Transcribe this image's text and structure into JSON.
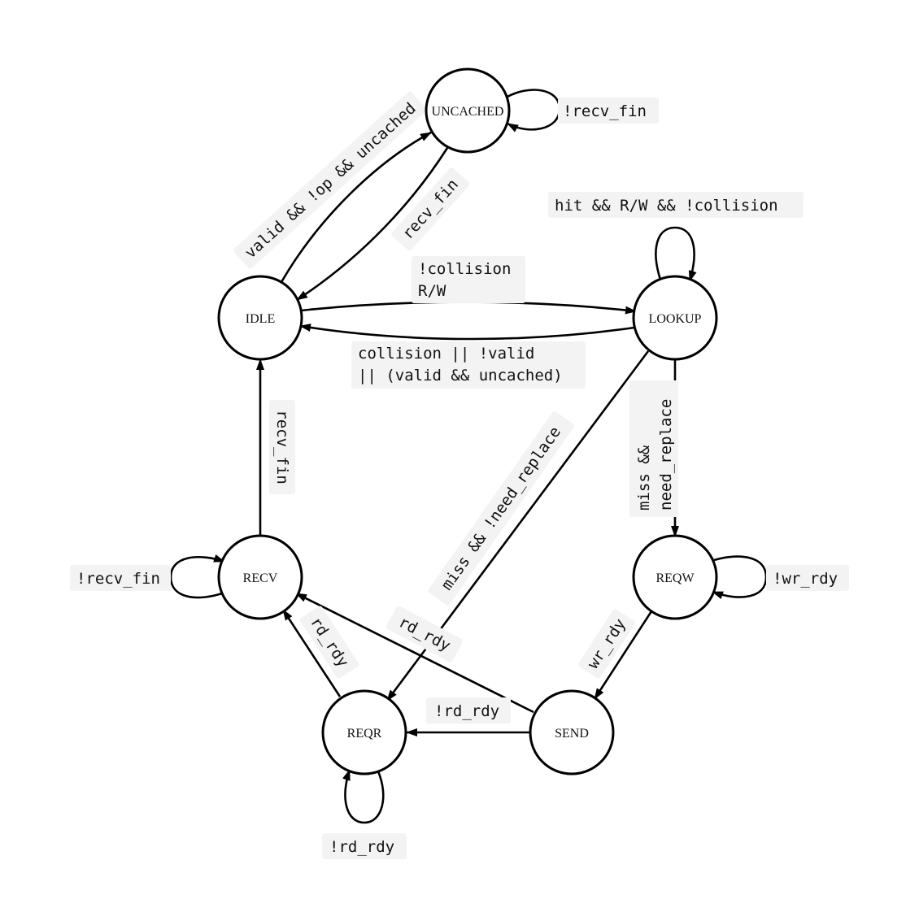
{
  "states": {
    "uncached": "UNCACHED",
    "idle": "IDLE",
    "lookup": "LOOKUP",
    "recv": "RECV",
    "reqw": "REQW",
    "reqr": "REQR",
    "send": "SEND"
  },
  "edges": {
    "uncached_self": "!recv_fin",
    "idle_to_uncached": "valid && !op && uncached",
    "uncached_to_idle": "recv_fin",
    "lookup_self": "hit && R/W && !collision",
    "idle_to_lookup_1": "!collision",
    "idle_to_lookup_2": "R/W",
    "lookup_to_idle_1": "collision || !valid",
    "lookup_to_idle_2": "|| (valid && uncached)",
    "recv_to_idle": "recv_fin",
    "lookup_to_reqr": "miss && !need_replace",
    "lookup_to_reqw_1": "miss &&",
    "lookup_to_reqw_2": "need_replace",
    "recv_self": "!recv_fin",
    "reqw_self": "!wr_rdy",
    "send_to_recv": "rd_rdy",
    "reqr_to_recv": "rd_rdy",
    "reqw_to_send": "wr_rdy",
    "send_to_reqr": "!rd_rdy",
    "reqr_self": "!rd_rdy"
  },
  "colors": {
    "stroke": "#000000",
    "label_background": "#f3f3f3",
    "node_fill": "#ffffff"
  }
}
